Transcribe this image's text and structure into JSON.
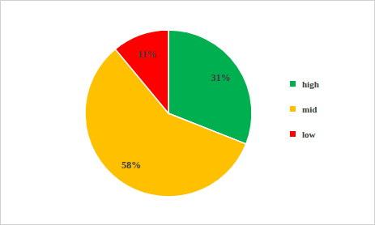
{
  "chart_data": {
    "type": "pie",
    "categories": [
      "high",
      "mid",
      "low"
    ],
    "values": [
      31,
      58,
      11
    ],
    "value_labels": [
      "31%",
      "58%",
      "11%"
    ],
    "colors": [
      "#00b050",
      "#ffc000",
      "#ff0000"
    ],
    "data_labels": true,
    "legend": "right"
  }
}
